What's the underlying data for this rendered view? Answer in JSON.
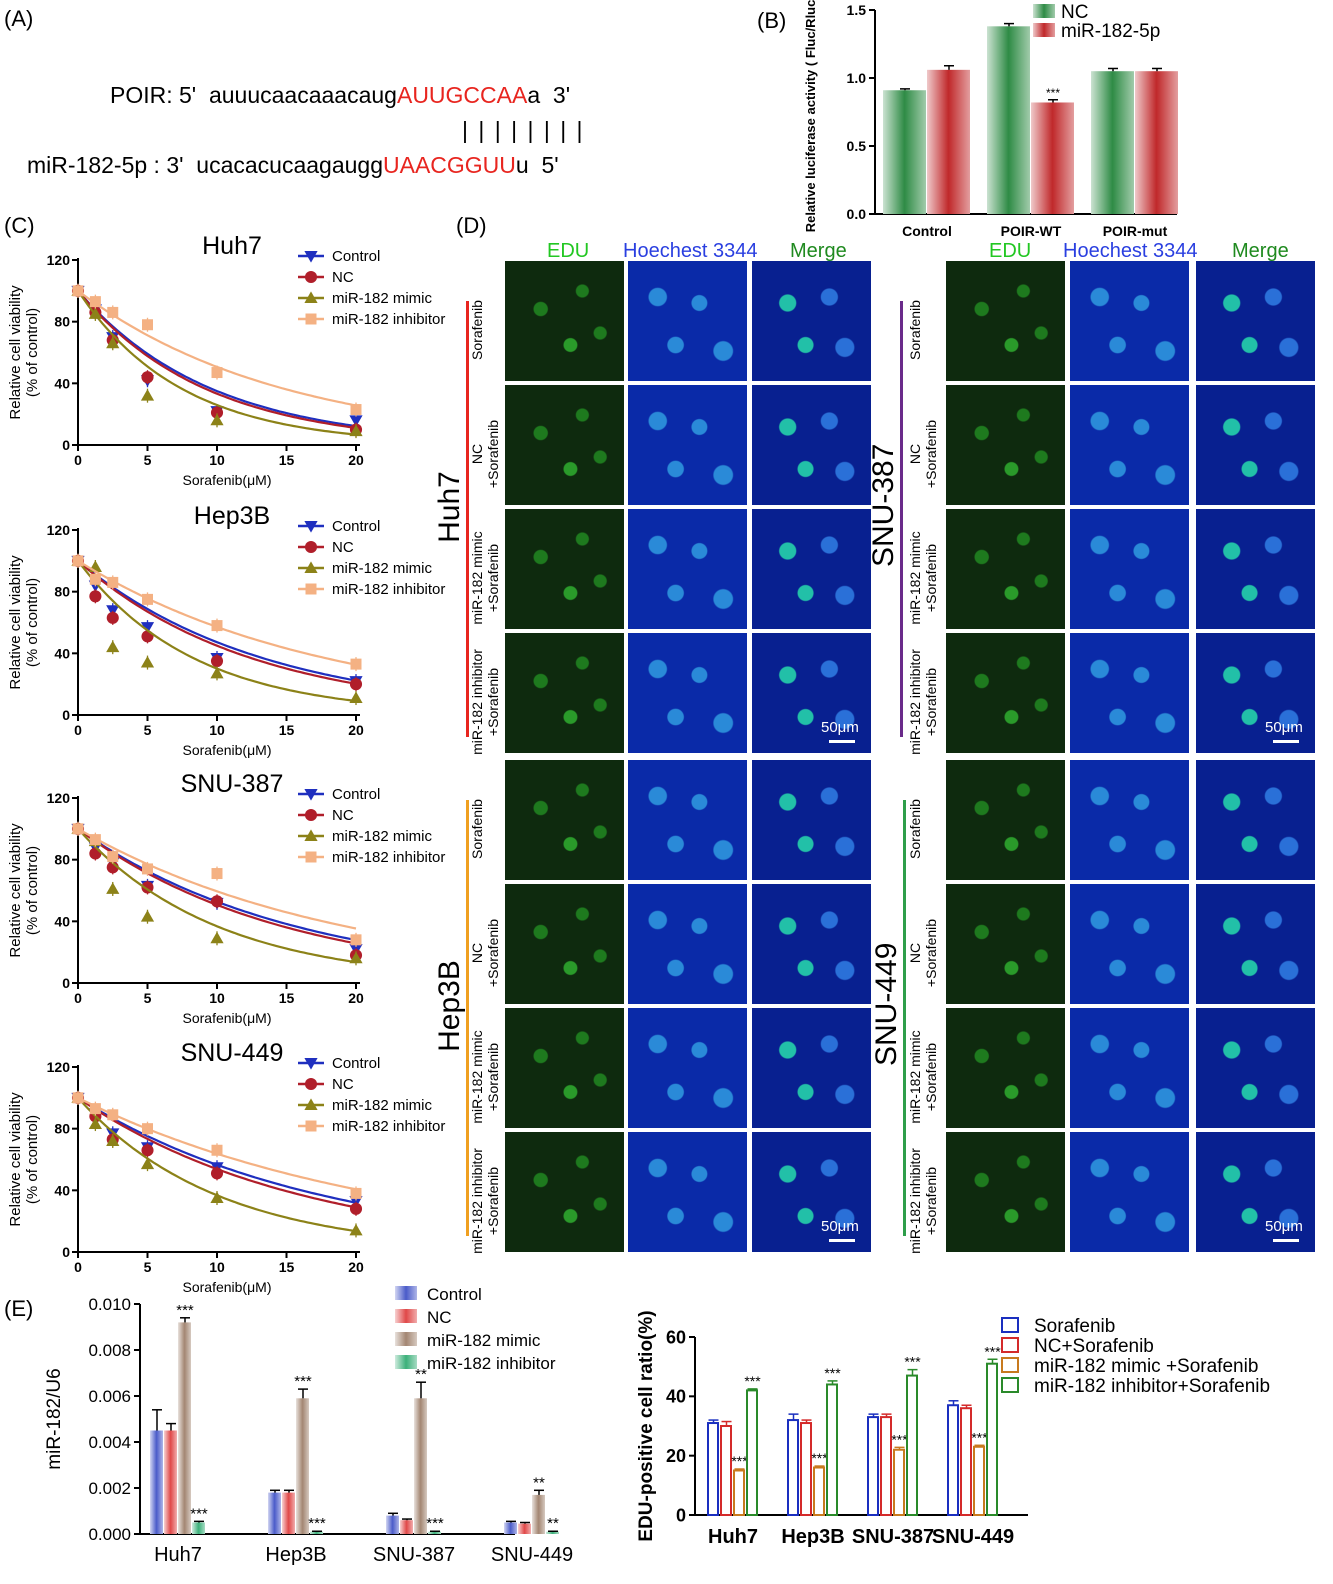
{
  "panel_labels": {
    "A": "(A)",
    "B": "(B)",
    "C": "(C)",
    "D": "(D)",
    "E": "(E)"
  },
  "panel_a": {
    "poir_prefix": "POIR: 5'  auuucaacaaacaug",
    "poir_seed": "AUUGCCAA",
    "poir_suffix": "a  3'",
    "pairing": "| | | | | | | |",
    "mir_prefix": "miR-182-5p : 3'  ucacacucaagaugg",
    "mir_seed": "UAACGGUU",
    "mir_suffix": "u  5'"
  },
  "panel_c_xlabel": "Sorafenib(μM)",
  "panel_c_ylabel": [
    "Relative cell viability",
    "(% of control)"
  ],
  "panel_c_legend": [
    "Control",
    "NC",
    "miR-182 mimic",
    "miR-182 inhibitor"
  ],
  "panel_d": {
    "col_headers": [
      "EDU",
      "Hoechest 3344",
      "Merge"
    ],
    "row_labels": [
      "Sorafenib",
      "NC\n+Sorafenib",
      "miR-182 mimic\n+Sorafenib",
      "miR-182 inhibitor\n+Sorafenib"
    ],
    "cell_lines": [
      "Huh7",
      "SNU-387",
      "Hep3B",
      "SNU-449"
    ],
    "scale_bar": "50μm",
    "colors": {
      "edu": "#22c722",
      "hoechst": "#2a3fe0",
      "merge": "#1f8a1f",
      "huh7_bar": "#e8251f",
      "snu387_bar": "#6a2a8a",
      "hep3b_bar": "#f0a020",
      "snu449_bar": "#2e9e4a"
    }
  },
  "chart_data": [
    {
      "id": "B",
      "type": "bar",
      "ylabel": "Relative luciferase activity ( Fluc/Rluc )",
      "categories": [
        "Control",
        "POIR-WT",
        "POIR-mut"
      ],
      "series": [
        {
          "name": "NC",
          "values": [
            0.91,
            1.38,
            1.05
          ],
          "errors": [
            0.01,
            0.02,
            0.02
          ],
          "color": "#2e8b45"
        },
        {
          "name": "miR-182-5p",
          "values": [
            1.06,
            0.82,
            1.05
          ],
          "errors": [
            0.03,
            0.02,
            0.02
          ],
          "color": "#c0282a"
        }
      ],
      "annotations": [
        {
          "category": "POIR-WT",
          "series": "miR-182-5p",
          "text": "***"
        }
      ],
      "ylim": [
        0,
        1.5
      ],
      "yticks": [
        "0.0",
        "0.5",
        "1.0",
        "1.5"
      ]
    },
    {
      "id": "C1",
      "type": "scatter",
      "title": "Huh7",
      "xticks": [
        "0",
        "5",
        "10",
        "15",
        "20"
      ],
      "yticks": [
        "0",
        "40",
        "80",
        "120"
      ],
      "xlim": [
        0,
        20
      ],
      "ylim": [
        0,
        120
      ],
      "x": [
        0,
        1.25,
        2.5,
        5,
        10,
        20
      ],
      "series": [
        {
          "name": "Control",
          "values": [
            100,
            88,
            70,
            42,
            22,
            16
          ],
          "color": "#1f2fbf",
          "marker": "tri-down",
          "fit_b": 0.105
        },
        {
          "name": "NC",
          "values": [
            100,
            86,
            68,
            44,
            21,
            10
          ],
          "color": "#b01e2a",
          "marker": "circle",
          "fit_b": 0.11
        },
        {
          "name": "miR-182 mimic",
          "values": [
            100,
            85,
            66,
            32,
            16,
            9
          ],
          "color": "#8c8218",
          "marker": "tri-up",
          "fit_b": 0.135
        },
        {
          "name": "miR-182 inhibitor",
          "values": [
            100,
            93,
            86,
            78,
            47,
            23
          ],
          "color": "#f4b183",
          "marker": "square",
          "fit_b": 0.068
        }
      ]
    },
    {
      "id": "C2",
      "type": "scatter",
      "title": "Hep3B",
      "xticks": [
        "0",
        "5",
        "10",
        "15",
        "20"
      ],
      "yticks": [
        "0",
        "40",
        "80",
        "120"
      ],
      "xlim": [
        0,
        20
      ],
      "ylim": [
        0,
        120
      ],
      "x": [
        0,
        1.25,
        2.5,
        5,
        10,
        20
      ],
      "series": [
        {
          "name": "Control",
          "values": [
            100,
            84,
            68,
            57,
            37,
            22
          ],
          "color": "#1f2fbf",
          "marker": "tri-down",
          "fit_b": 0.075
        },
        {
          "name": "NC",
          "values": [
            100,
            77,
            63,
            51,
            35,
            20
          ],
          "color": "#b01e2a",
          "marker": "circle",
          "fit_b": 0.08
        },
        {
          "name": "miR-182 mimic",
          "values": [
            100,
            96,
            44,
            34,
            27,
            11
          ],
          "color": "#8c8218",
          "marker": "tri-up",
          "fit_b": 0.12
        },
        {
          "name": "miR-182 inhibitor",
          "values": [
            100,
            88,
            86,
            75,
            58,
            33
          ],
          "color": "#f4b183",
          "marker": "square",
          "fit_b": 0.056
        }
      ]
    },
    {
      "id": "C3",
      "type": "scatter",
      "title": "SNU-387",
      "xticks": [
        "0",
        "5",
        "10",
        "15",
        "20"
      ],
      "yticks": [
        "0",
        "40",
        "80",
        "120"
      ],
      "xlim": [
        0,
        20
      ],
      "ylim": [
        0,
        120
      ],
      "x": [
        0,
        1.25,
        2.5,
        5,
        10,
        20
      ],
      "series": [
        {
          "name": "Control",
          "values": [
            100,
            88,
            78,
            63,
            52,
            22
          ],
          "color": "#1f2fbf",
          "marker": "tri-down",
          "fit_b": 0.064
        },
        {
          "name": "NC",
          "values": [
            100,
            84,
            75,
            62,
            53,
            18
          ],
          "color": "#b01e2a",
          "marker": "circle",
          "fit_b": 0.068
        },
        {
          "name": "miR-182 mimic",
          "values": [
            100,
            92,
            61,
            43,
            29,
            16
          ],
          "color": "#8c8218",
          "marker": "tri-up",
          "fit_b": 0.1
        },
        {
          "name": "miR-182 inhibitor",
          "values": [
            100,
            93,
            82,
            74,
            71,
            28
          ],
          "color": "#f4b183",
          "marker": "square",
          "fit_b": 0.052
        }
      ]
    },
    {
      "id": "C4",
      "type": "scatter",
      "title": "SNU-449",
      "xticks": [
        "0",
        "5",
        "10",
        "15",
        "20"
      ],
      "yticks": [
        "0",
        "40",
        "80",
        "120"
      ],
      "xlim": [
        0,
        20
      ],
      "ylim": [
        0,
        120
      ],
      "x": [
        0,
        1.25,
        2.5,
        5,
        10,
        20
      ],
      "series": [
        {
          "name": "Control",
          "values": [
            100,
            90,
            77,
            68,
            55,
            33
          ],
          "color": "#1f2fbf",
          "marker": "tri-down",
          "fit_b": 0.057
        },
        {
          "name": "NC",
          "values": [
            100,
            88,
            73,
            66,
            51,
            28
          ],
          "color": "#b01e2a",
          "marker": "circle",
          "fit_b": 0.062
        },
        {
          "name": "miR-182 mimic",
          "values": [
            100,
            83,
            72,
            57,
            35,
            14
          ],
          "color": "#8c8218",
          "marker": "tri-up",
          "fit_b": 0.1
        },
        {
          "name": "miR-182 inhibitor",
          "values": [
            100,
            93,
            89,
            80,
            66,
            38
          ],
          "color": "#f4b183",
          "marker": "square",
          "fit_b": 0.045
        }
      ]
    },
    {
      "id": "E",
      "type": "bar",
      "ylabel": "miR-182/U6",
      "categories": [
        "Huh7",
        "Hep3B",
        "SNU-387",
        "SNU-449"
      ],
      "series": [
        {
          "name": "Control",
          "values": [
            0.0045,
            0.0018,
            0.0008,
            0.0005
          ],
          "errors": [
            0.0009,
            0.0001,
            0.0001,
            5e-05
          ],
          "color": "#4a5bc9"
        },
        {
          "name": "NC",
          "values": [
            0.0045,
            0.0018,
            0.0006,
            0.00045
          ],
          "errors": [
            0.0003,
            0.0001,
            5e-05,
            5e-05
          ],
          "color": "#e04848"
        },
        {
          "name": "miR-182 mimic",
          "values": [
            0.0092,
            0.0059,
            0.0059,
            0.0017
          ],
          "errors": [
            0.0002,
            0.0004,
            0.0007,
            0.0002
          ],
          "color": "#a38672"
        },
        {
          "name": "miR-182 inhibitor",
          "values": [
            0.0005,
            0.0001,
            0.0001,
            0.0001
          ],
          "errors": [
            5e-05,
            2e-05,
            2e-05,
            2e-05
          ],
          "color": "#3cb07a"
        }
      ],
      "annotations": [
        {
          "category": "Huh7",
          "series": "miR-182 mimic",
          "text": "***"
        },
        {
          "category": "Huh7",
          "series": "miR-182 inhibitor",
          "text": "***"
        },
        {
          "category": "Hep3B",
          "series": "miR-182 mimic",
          "text": "***"
        },
        {
          "category": "Hep3B",
          "series": "miR-182 inhibitor",
          "text": "***"
        },
        {
          "category": "SNU-387",
          "series": "miR-182 mimic",
          "text": "**"
        },
        {
          "category": "SNU-387",
          "series": "miR-182 inhibitor",
          "text": "***"
        },
        {
          "category": "SNU-449",
          "series": "miR-182 mimic",
          "text": "**"
        },
        {
          "category": "SNU-449",
          "series": "miR-182 inhibitor",
          "text": "**"
        }
      ],
      "ylim": [
        0,
        0.01
      ],
      "yticks": [
        "0.000",
        "0.002",
        "0.004",
        "0.006",
        "0.008",
        "0.010"
      ]
    },
    {
      "id": "EDU",
      "type": "bar",
      "ylabel": "EDU-positive cell ratio(%)",
      "categories": [
        "Huh7",
        "Hep3B",
        "SNU-387",
        "SNU-449"
      ],
      "series": [
        {
          "name": "Sorafenib",
          "values": [
            31,
            32,
            33,
            37
          ],
          "errors": [
            1,
            2,
            1,
            1.5
          ],
          "color": "#1a2fbf"
        },
        {
          "name": "NC+Sorafenib",
          "values": [
            30,
            31,
            33,
            36
          ],
          "errors": [
            1.5,
            1,
            1,
            1
          ],
          "color": "#d42a2a"
        },
        {
          "name": "miR-182 mimic +Sorafenib",
          "values": [
            15,
            16,
            22,
            23
          ],
          "errors": [
            0.5,
            0.5,
            0.8,
            0.5
          ],
          "color": "#c87a1e"
        },
        {
          "name": "miR-182 inhibitor+Sorafenib",
          "values": [
            42,
            44,
            47,
            51
          ],
          "errors": [
            0.5,
            1.2,
            2,
            1.5
          ],
          "color": "#2a8a2a"
        }
      ],
      "annotations": [
        {
          "category": "Huh7",
          "series": "miR-182 mimic +Sorafenib",
          "text": "***"
        },
        {
          "category": "Huh7",
          "series": "miR-182 inhibitor+Sorafenib",
          "text": "***"
        },
        {
          "category": "Hep3B",
          "series": "miR-182 mimic +Sorafenib",
          "text": "***"
        },
        {
          "category": "Hep3B",
          "series": "miR-182 inhibitor+Sorafenib",
          "text": "***"
        },
        {
          "category": "SNU-387",
          "series": "miR-182 mimic +Sorafenib",
          "text": "***"
        },
        {
          "category": "SNU-387",
          "series": "miR-182 inhibitor+Sorafenib",
          "text": "***"
        },
        {
          "category": "SNU-449",
          "series": "miR-182 mimic +Sorafenib",
          "text": "***"
        },
        {
          "category": "SNU-449",
          "series": "miR-182 inhibitor+Sorafenib",
          "text": "***"
        }
      ],
      "ylim": [
        0,
        60
      ],
      "yticks": [
        "0",
        "20",
        "40",
        "60"
      ]
    }
  ]
}
